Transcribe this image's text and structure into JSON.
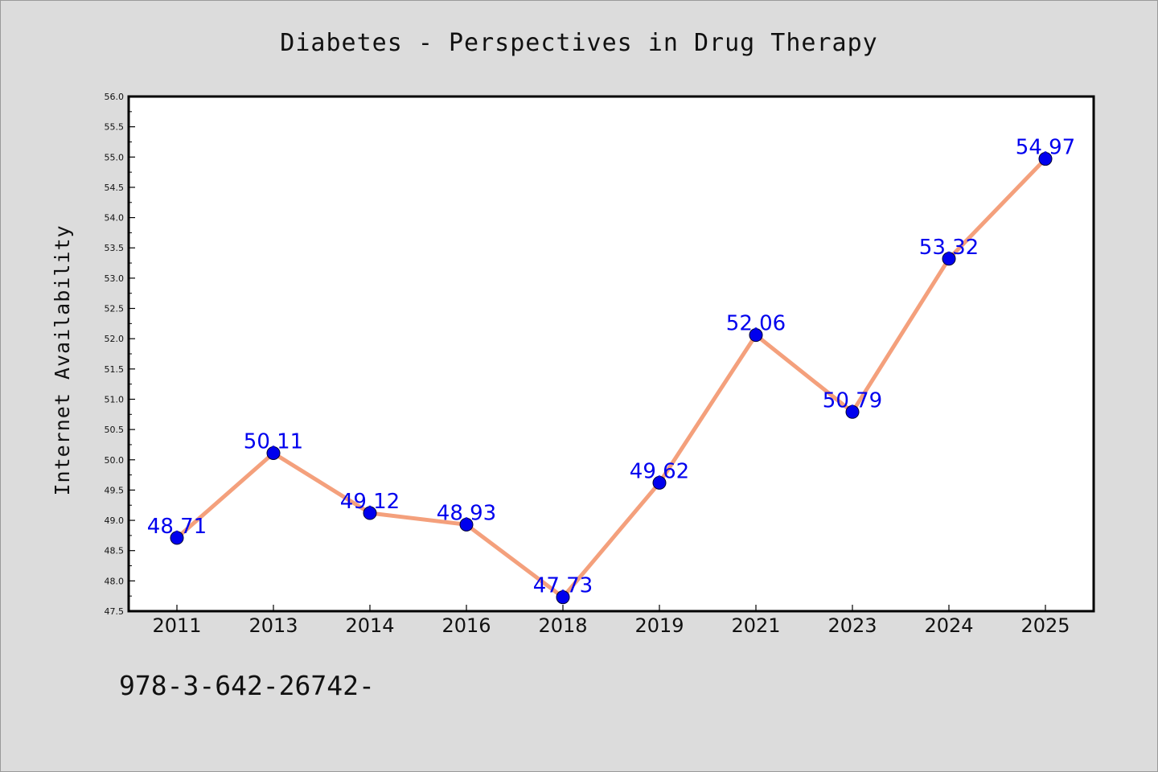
{
  "chart_data": {
    "type": "line",
    "title": "Diabetes - Perspectives in Drug Therapy",
    "xlabel": "",
    "ylabel": "Internet Availability",
    "categories": [
      "2011",
      "2013",
      "2014",
      "2016",
      "2018",
      "2019",
      "2021",
      "2023",
      "2024",
      "2025"
    ],
    "series": [
      {
        "values": [
          48.71,
          50.11,
          49.12,
          48.93,
          47.73,
          49.62,
          52.06,
          50.79,
          53.32,
          54.97
        ],
        "data_labels": [
          "48.71",
          "50.11",
          "49.12",
          "48.93",
          "47.73",
          "49.62",
          "52.06",
          "50.79",
          "53.32",
          "54.97"
        ],
        "line_color": "#f4a07c",
        "marker_color": "#0000ee",
        "label_color": "#0000ee"
      }
    ],
    "ylim": [
      47.5,
      56.0
    ],
    "yticks": [
      "47.5",
      "48.0",
      "48.5",
      "49.0",
      "49.5",
      "50.0",
      "50.5",
      "51.0",
      "51.5",
      "52.0",
      "52.5",
      "53.0",
      "53.5",
      "54.0",
      "54.5",
      "55.0",
      "55.5",
      "56.0"
    ],
    "grid": false,
    "legend": "none"
  },
  "footer": {
    "text": "978-3-642-26742-"
  },
  "colors": {
    "background": "#dcdcdc",
    "plot_background": "#ffffff"
  }
}
